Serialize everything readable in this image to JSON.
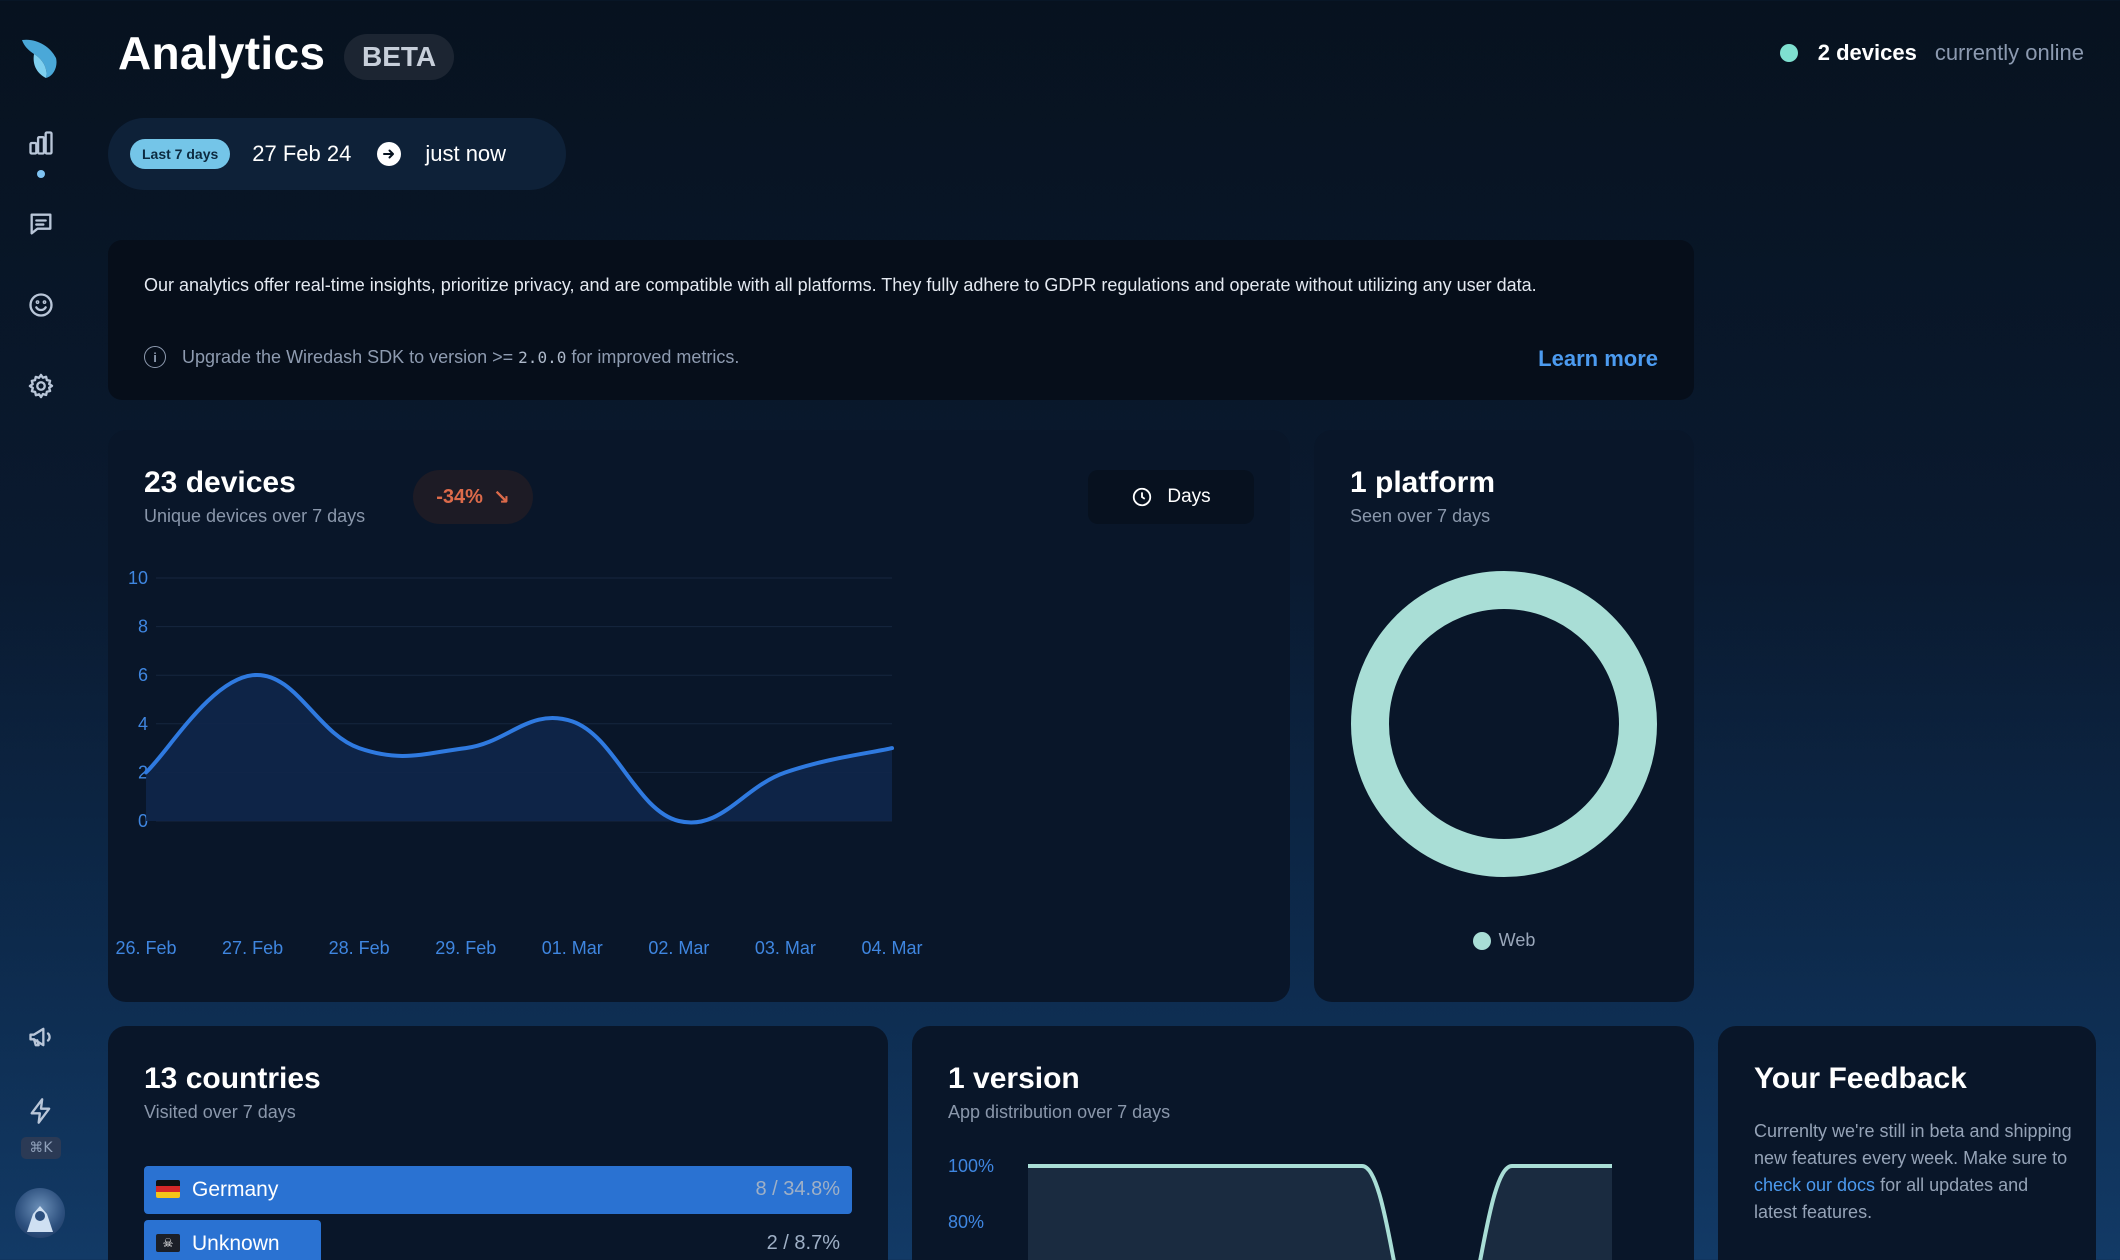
{
  "app": {
    "title": "Analytics",
    "badge": "BETA"
  },
  "online": {
    "count": "2 devices",
    "suffix": "currently online",
    "color": "#7fe0d0"
  },
  "date_range": {
    "preset": "Last 7 days",
    "from": "27 Feb 24",
    "to": "just now"
  },
  "sidebar": {
    "items": [
      {
        "name": "analytics",
        "icon": "bar-chart-icon",
        "active": true
      },
      {
        "name": "feedback",
        "icon": "message-icon"
      },
      {
        "name": "ratings",
        "icon": "smiley-icon"
      },
      {
        "name": "settings",
        "icon": "gear-icon"
      },
      {
        "name": "announcements",
        "icon": "megaphone-icon"
      },
      {
        "name": "quick-actions",
        "icon": "bolt-icon"
      }
    ],
    "shortcut": "⌘K"
  },
  "info": {
    "text": "Our analytics offer real-time insights, prioritize privacy, and are compatible with all platforms. They fully adhere to GDPR regulations and operate without utilizing any user data.",
    "note_prefix": "Upgrade the Wiredash SDK to version >=",
    "note_version": "2.0.0",
    "note_suffix": "for improved metrics.",
    "link": "Learn more"
  },
  "devices": {
    "title": "23 devices",
    "subtitle": "Unique devices over 7 days",
    "trend": "-34%",
    "trend_arrow": "↘",
    "granularity": "Days"
  },
  "platform": {
    "title": "1 platform",
    "subtitle": "Seen over 7 days",
    "legend": "Web"
  },
  "countries": {
    "title": "13 countries",
    "subtitle": "Visited over 7 days",
    "rows": [
      {
        "name": "Germany",
        "value": "8 / 34.8%",
        "share": 1.0
      },
      {
        "name": "Unknown",
        "value": "2 / 8.7%",
        "share": 0.25
      }
    ]
  },
  "version": {
    "title": "1 version",
    "subtitle": "App distribution over 7 days"
  },
  "feedback": {
    "title": "Your Feedback",
    "text_before": "Currenlty we're still in beta and shipping new features every week. Make sure to",
    "link": "check our docs",
    "text_after": "for all updates and latest features."
  },
  "chart_data": [
    {
      "type": "line",
      "title": "",
      "x": [
        "26. Feb",
        "27. Feb",
        "28. Feb",
        "29. Feb",
        "01. Mar",
        "02. Mar",
        "03. Mar",
        "04. Mar"
      ],
      "series": [
        {
          "values": [
            2,
            6,
            3,
            3,
            4.1,
            0,
            2,
            3
          ]
        }
      ],
      "ylim": [
        0,
        10
      ],
      "yticks": [
        0,
        2,
        4,
        6,
        8,
        10
      ],
      "grid": true,
      "color": "#2f7ae0"
    },
    {
      "type": "pie",
      "categories": [
        "Web"
      ],
      "values": [
        100
      ],
      "color": "#a9ded6"
    },
    {
      "type": "area",
      "yticks": [
        "100%",
        "80%"
      ],
      "ylim": [
        0,
        100
      ],
      "color": "#a9ded6"
    }
  ]
}
